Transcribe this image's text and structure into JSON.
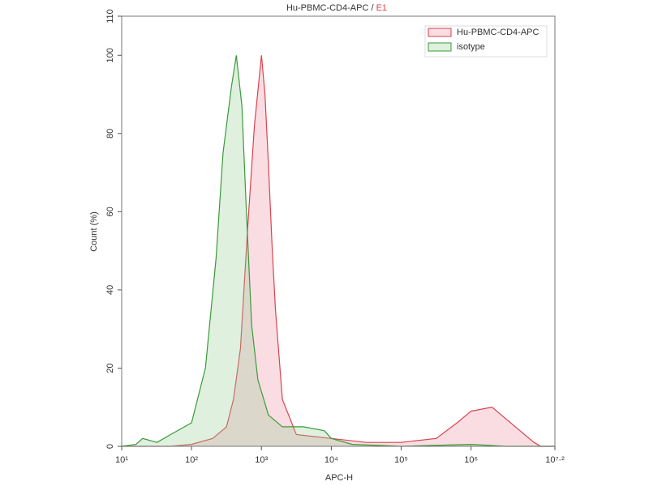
{
  "chart_data": {
    "type": "area",
    "title": [
      "Hu-PBMC-CD4-APC /",
      "E1"
    ],
    "title_colors": [
      "#333333",
      "#d9434f"
    ],
    "xlabel": "APC-H",
    "ylabel": "Count (%)",
    "xscale": "log",
    "xlim": [
      10,
      15848932
    ],
    "ylim": [
      0,
      110
    ],
    "xticks": [
      {
        "value": 10,
        "label": "10¹"
      },
      {
        "value": 100,
        "label": "10²"
      },
      {
        "value": 1000,
        "label": "10³"
      },
      {
        "value": 10000,
        "label": "10⁴"
      },
      {
        "value": 100000,
        "label": "10⁵"
      },
      {
        "value": 1000000,
        "label": "10⁶"
      },
      {
        "value": 15848932,
        "label": "10⁷·²"
      }
    ],
    "yticks": [
      0,
      20,
      40,
      60,
      80,
      100,
      110
    ],
    "legend": "upper right",
    "series": [
      {
        "name": "Hu-PBMC-CD4-APC",
        "color": "#d9434f",
        "fill": "rgba(240,150,165,0.32)",
        "x": [
          10,
          50,
          100,
          200,
          316,
          398,
          501,
          631,
          794,
          1000,
          1122,
          1259,
          1413,
          1585,
          1995,
          3162,
          10000,
          31623,
          100000,
          316228,
          631000,
          1000000,
          1995262,
          3162278,
          5011872,
          7943282,
          10000000,
          15848932
        ],
        "values": [
          0,
          0,
          0.5,
          2,
          5,
          12,
          25,
          55,
          82,
          100,
          90,
          72,
          52,
          35,
          12,
          3,
          2,
          1,
          1,
          2,
          6,
          9,
          10,
          7,
          4,
          1,
          0,
          0
        ]
      },
      {
        "name": "isotype",
        "color": "#3a9a3a",
        "fill": "rgba(150,205,150,0.30)",
        "x": [
          10,
          16,
          20,
          32,
          50,
          100,
          158,
          224,
          282,
          372,
          437,
          525,
          603,
          724,
          891,
          1259,
          1995,
          3981,
          7943,
          10000,
          19953,
          100000,
          1000000,
          3162278,
          15848932
        ],
        "values": [
          0,
          0.5,
          2,
          1,
          3,
          6,
          20,
          48,
          75,
          92,
          100,
          87,
          62,
          31,
          17,
          8,
          5,
          5,
          4,
          2,
          0.5,
          0,
          0.5,
          0,
          0
        ]
      }
    ]
  }
}
